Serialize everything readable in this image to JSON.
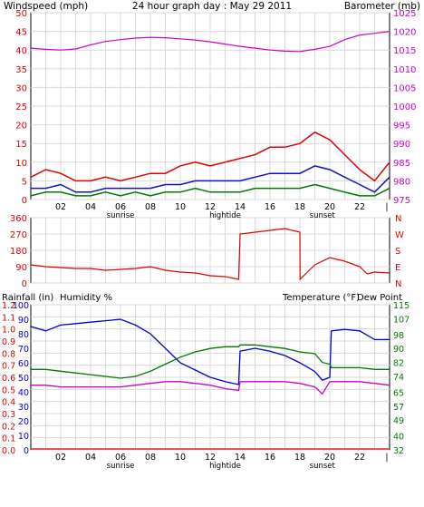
{
  "title": "24 hour graph day : May 29 2011",
  "colors": {
    "wind": "#e00000",
    "gust": "#e00000",
    "avg": "#1010c0",
    "green": "#007700",
    "magenta": "#cc00cc",
    "dir": "#e00000",
    "rain": "#e00000",
    "humidity": "#0000cc",
    "temp": "#007700",
    "dew": "#cc00cc",
    "grid": "#d8d8d8"
  },
  "x_labels": [
    "02",
    "04",
    "06",
    "08",
    "10",
    "12",
    "14",
    "16",
    "18",
    "20",
    "22"
  ],
  "x_events": [
    "sunrise",
    "hightide",
    "sunset"
  ],
  "chart_data": [
    {
      "type": "line",
      "label_left": "Windspeed (mph)",
      "label_right": "Barometer (mb)",
      "y_left_ticks": [
        0,
        5,
        10,
        15,
        20,
        25,
        30,
        35,
        40,
        45,
        50
      ],
      "y_right_ticks": [
        975,
        980,
        985,
        990,
        995,
        1000,
        1005,
        1010,
        1015,
        1020,
        1025
      ],
      "ylim_left": [
        0,
        50
      ],
      "ylim_right": [
        975,
        1025
      ],
      "x": [
        0,
        1,
        2,
        3,
        4,
        5,
        6,
        7,
        8,
        9,
        10,
        11,
        12,
        13,
        14,
        15,
        16,
        17,
        18,
        19,
        20,
        21,
        22,
        23,
        24
      ],
      "series": [
        {
          "axis": "right",
          "color_key": "magenta",
          "values": [
            1015.5,
            1015.2,
            1015,
            1015.3,
            1016.4,
            1017.3,
            1017.8,
            1018.2,
            1018.4,
            1018.3,
            1018,
            1017.7,
            1017.2,
            1016.6,
            1016,
            1015.5,
            1015,
            1014.7,
            1014.6,
            1015.2,
            1016,
            1017.8,
            1019,
            1019.5,
            1020
          ]
        },
        {
          "axis": "left",
          "color_key": "gust",
          "values": [
            6,
            8,
            7,
            5,
            5,
            6,
            5,
            6,
            7,
            7,
            9,
            10,
            9,
            10,
            11,
            12,
            14,
            14,
            15,
            18,
            16,
            12,
            8,
            5,
            10
          ]
        },
        {
          "axis": "left",
          "color_key": "avg",
          "values": [
            3,
            3,
            4,
            2,
            2,
            3,
            3,
            3,
            3,
            4,
            4,
            5,
            5,
            5,
            5,
            6,
            7,
            7,
            7,
            9,
            8,
            6,
            4,
            2,
            6
          ]
        },
        {
          "axis": "left",
          "color_key": "green",
          "values": [
            1,
            2,
            2,
            1,
            1,
            2,
            1,
            2,
            1,
            2,
            2,
            3,
            2,
            2,
            2,
            3,
            3,
            3,
            3,
            4,
            3,
            2,
            1,
            1,
            3
          ]
        }
      ]
    },
    {
      "type": "line",
      "label_right_letters": [
        "N",
        "W",
        "S",
        "E",
        "N"
      ],
      "y_left_ticks": [
        0,
        90,
        180,
        270,
        360
      ],
      "ylim_left": [
        0,
        360
      ],
      "x": [
        0,
        1,
        2,
        3,
        4,
        5,
        6,
        7,
        8,
        9,
        10,
        11,
        12,
        13,
        13.9,
        14,
        15,
        16,
        17,
        18,
        18.01,
        19,
        20,
        21,
        22,
        22.5,
        23,
        24
      ],
      "series": [
        {
          "axis": "left",
          "color_key": "dir",
          "values": [
            100,
            90,
            85,
            80,
            80,
            70,
            75,
            80,
            90,
            70,
            60,
            55,
            40,
            35,
            20,
            270,
            280,
            290,
            300,
            280,
            20,
            100,
            140,
            120,
            90,
            50,
            60,
            55
          ]
        }
      ]
    },
    {
      "type": "line",
      "label_left_1": "Rainfall (in)",
      "label_left_2": "Humidity %",
      "label_right_1": "Temperature (°F)",
      "label_right_2": "Dew Point",
      "y_rain_ticks": [
        "0.0",
        "0.1",
        "0.2",
        "0.3",
        "0.4",
        "0.5",
        "0.6",
        "0.7",
        "0.8",
        "0.9",
        "1.0",
        "1.1",
        "1.2"
      ],
      "y_hum_ticks": [
        0,
        10,
        20,
        30,
        40,
        50,
        60,
        70,
        80,
        90,
        100
      ],
      "y_temp_ticks": [
        32,
        40,
        49,
        57,
        65,
        74,
        82,
        90,
        98,
        107,
        115
      ],
      "ylim_hum": [
        0,
        100
      ],
      "ylim_temp": [
        32,
        115
      ],
      "x": [
        0,
        1,
        2,
        3,
        4,
        5,
        6,
        7,
        8,
        9,
        10,
        11,
        12,
        13,
        13.9,
        14,
        15,
        16,
        17,
        18,
        19,
        19.5,
        20,
        20.1,
        21,
        22,
        23,
        24
      ],
      "series": [
        {
          "name": "Humidity %",
          "axis": "hum",
          "color_key": "humidity",
          "values": [
            85,
            82,
            86,
            87,
            88,
            89,
            90,
            86,
            80,
            70,
            60,
            55,
            50,
            47,
            45,
            68,
            70,
            68,
            65,
            60,
            54,
            48,
            50,
            82,
            83,
            82,
            76,
            76
          ]
        },
        {
          "name": "Temperature (°F)",
          "axis": "temp",
          "color_key": "temp",
          "values": [
            78,
            78,
            77,
            76,
            75,
            74,
            73,
            74,
            77,
            81,
            85,
            88,
            90,
            91,
            91,
            92,
            92,
            91,
            90,
            88,
            87,
            82,
            81,
            79,
            79,
            79,
            78,
            78
          ]
        },
        {
          "name": "Dew Point",
          "axis": "temp",
          "color_key": "dew",
          "values": [
            69,
            69,
            68,
            68,
            68,
            68,
            68,
            69,
            70,
            71,
            71,
            70,
            69,
            67,
            66,
            71,
            71,
            71,
            71,
            70,
            68,
            64,
            71,
            71,
            71,
            71,
            70,
            69
          ]
        },
        {
          "name": "Rainfall (in)",
          "axis": "rain",
          "color_key": "rain",
          "values": [
            0,
            0,
            0,
            0,
            0,
            0,
            0,
            0,
            0,
            0,
            0,
            0,
            0,
            0,
            0,
            0,
            0,
            0,
            0,
            0,
            0,
            0,
            0,
            0,
            0,
            0,
            0,
            0
          ]
        }
      ]
    }
  ]
}
